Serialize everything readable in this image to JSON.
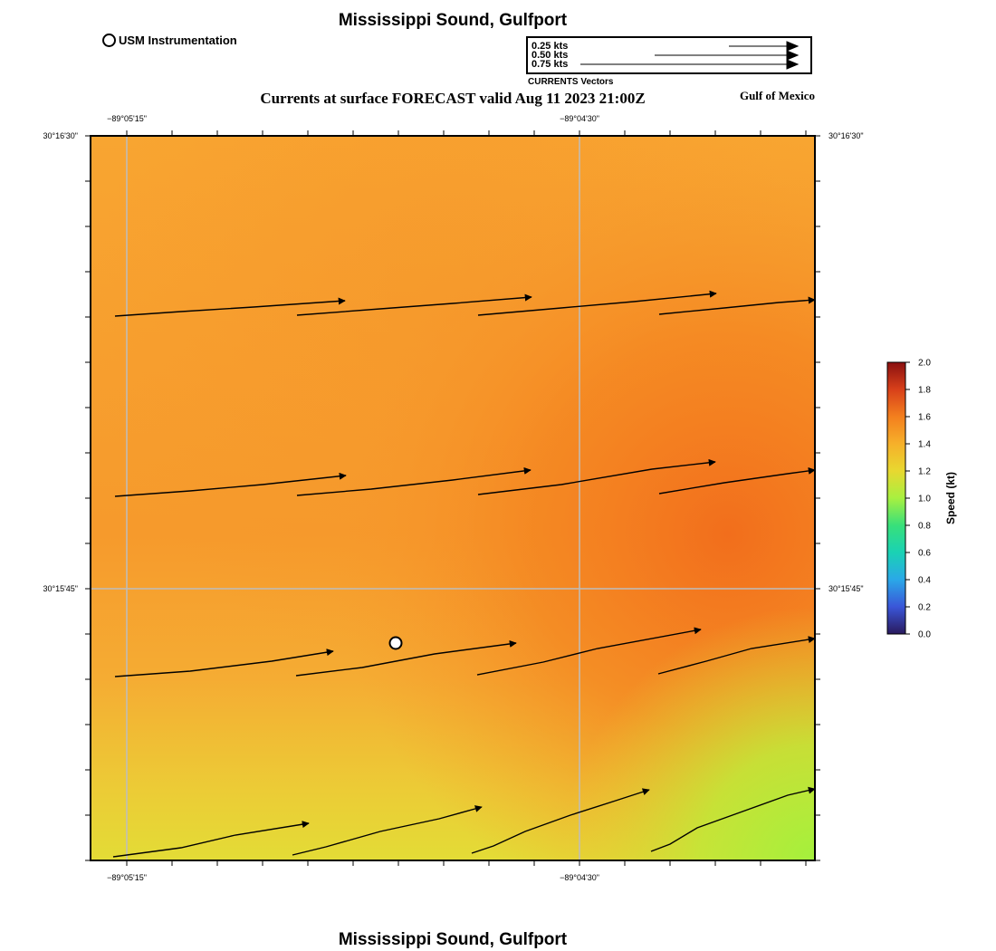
{
  "title": "Mississippi Sound, Gulfport",
  "subtitle": "Currents at surface FORECAST valid Aug 11 2023 21:00Z",
  "region_label": "Gulf of Mexico",
  "instrument_legend": "USM Instrumentation",
  "vector_legend": {
    "title": "CURRENTS Vectors",
    "entries": [
      {
        "label": "0.25 kts",
        "speed": 0.25
      },
      {
        "label": "0.50 kts",
        "speed": 0.5
      },
      {
        "label": "0.75 kts",
        "speed": 0.75
      }
    ]
  },
  "axes": {
    "top_lon_labels": [
      "−89°05'15\"",
      "−89°04'30\""
    ],
    "bottom_lon_labels": [
      "−89°05'15\"",
      "−89°04'30\""
    ],
    "left_lat_labels": [
      "30°16'30\"",
      "30°15'45\""
    ],
    "right_lat_labels": [
      "30°16'30\"",
      "30°15'45\""
    ]
  },
  "colorbar": {
    "label": "Speed (kt)",
    "ticks": [
      "0.0",
      "0.2",
      "0.4",
      "0.6",
      "0.8",
      "1.0",
      "1.2",
      "1.4",
      "1.6",
      "1.8",
      "2.0"
    ],
    "range": [
      0,
      2.0
    ],
    "colors": [
      "#2a1a5e",
      "#3a56d8",
      "#2aa8e8",
      "#1ad2b4",
      "#38e07a",
      "#a8f040",
      "#e8d830",
      "#f6b02a",
      "#f37f1e",
      "#d8401a",
      "#8a1010"
    ]
  },
  "station_marker": {
    "name": "USM Instrumentation"
  }
}
